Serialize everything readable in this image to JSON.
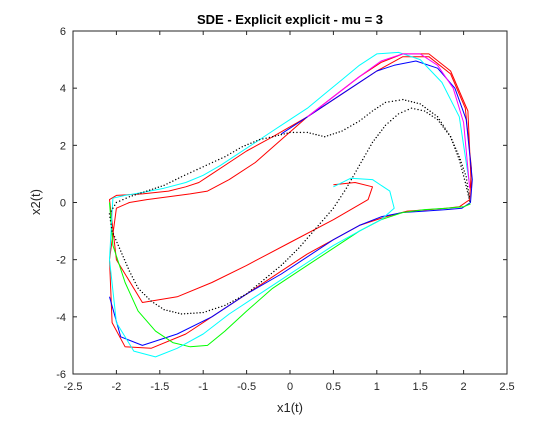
{
  "chart_data": {
    "type": "line",
    "title": "SDE - Explicit explicit - mu = 3",
    "xlabel": "x1(t)",
    "ylabel": "x2(t)",
    "xlim": [
      -2.5,
      2.5
    ],
    "ylim": [
      -6,
      6
    ],
    "xticks": [
      -2.5,
      -2,
      -1.5,
      -1,
      -0.5,
      0,
      0.5,
      1,
      1.5,
      2,
      2.5
    ],
    "yticks": [
      -6,
      -4,
      -2,
      0,
      2,
      4,
      6
    ],
    "xtick_labels": [
      "-2.5",
      "-2",
      "-1.5",
      "-1",
      "-0.5",
      "0",
      "0.5",
      "1",
      "1.5",
      "2",
      "2.5"
    ],
    "ytick_labels": [
      "-6",
      "-4",
      "-2",
      "0",
      "2",
      "4",
      "6"
    ],
    "grid": false,
    "legend": null,
    "colors": {
      "background": "#ffffff",
      "axes": "#262626"
    },
    "series": [
      {
        "color": "#ff0000",
        "line_style": "solid",
        "x": [
          0.5,
          0.75,
          0.95,
          0.9,
          0.5,
          0,
          -0.5,
          -0.9,
          -1.3,
          -1.7,
          -2.0,
          -2.08,
          -2.0,
          -1.7,
          -1.4,
          -1.2,
          -1.05,
          -0.9,
          -0.7,
          -0.5,
          -0.2,
          0.2,
          0.6,
          1.0,
          1.3,
          1.6,
          1.85,
          2.02,
          2.09,
          2.07,
          1.95,
          1.8,
          1.6,
          1.35,
          1.1,
          0.8,
          0.5,
          0.2,
          -0.1,
          -0.4,
          -0.8,
          -1.2,
          -1.6,
          -1.9,
          -2.05,
          -2.08,
          -2.0,
          -1.85,
          -1.65,
          -1.4,
          -1.15,
          -0.95,
          -0.7,
          -0.4,
          -0.1,
          0.2,
          0.5,
          0.8,
          1.05,
          1.3,
          1.6,
          1.85,
          2.05,
          2.09
        ],
        "y": [
          0.62,
          0.7,
          0.55,
          0.1,
          -0.6,
          -1.4,
          -2.2,
          -2.8,
          -3.3,
          -3.5,
          -2.0,
          0.1,
          0.25,
          0.3,
          0.4,
          0.55,
          0.7,
          1.0,
          1.4,
          1.8,
          2.3,
          3.0,
          3.8,
          4.6,
          5.1,
          5.1,
          4.5,
          3.3,
          1.2,
          0.1,
          -0.15,
          -0.2,
          -0.25,
          -0.3,
          -0.5,
          -0.8,
          -1.3,
          -1.8,
          -2.4,
          -3.0,
          -3.8,
          -4.6,
          -5.1,
          -5.05,
          -4.2,
          -2.0,
          -0.2,
          0.0,
          0.1,
          0.2,
          0.3,
          0.4,
          0.8,
          1.4,
          2.2,
          3.0,
          3.7,
          4.4,
          4.9,
          5.2,
          5.2,
          4.6,
          3.2,
          0.5
        ]
      },
      {
        "color": "#0000ff",
        "line_style": "solid",
        "x": [
          -0.1,
          0.2,
          0.5,
          0.8,
          1.0,
          1.2,
          1.45,
          1.7,
          1.9,
          2.03,
          2.1,
          2.08,
          1.98,
          1.8,
          1.55,
          1.3,
          1.05,
          0.8,
          0.5,
          0.2,
          -0.1,
          -0.5,
          -0.9,
          -1.3,
          -1.7,
          -1.95,
          -2.08
        ],
        "y": [
          2.4,
          3.0,
          3.6,
          4.2,
          4.6,
          4.8,
          4.95,
          4.7,
          4.0,
          2.9,
          0.8,
          0.0,
          -0.2,
          -0.25,
          -0.3,
          -0.35,
          -0.5,
          -0.8,
          -1.3,
          -1.9,
          -2.5,
          -3.2,
          -4.0,
          -4.6,
          -5.0,
          -4.7,
          -3.3
        ]
      },
      {
        "color": "#00ff00",
        "line_style": "solid",
        "x": [
          -2.08,
          -2.04,
          -1.9,
          -1.75,
          -1.55,
          -1.35,
          -1.15,
          -0.95,
          -0.75,
          -0.5,
          -0.2,
          0.15,
          0.5,
          0.8,
          1.05,
          1.3,
          1.55,
          1.8,
          2.0,
          2.08
        ],
        "y": [
          0.0,
          -1.5,
          -2.8,
          -3.8,
          -4.5,
          -4.9,
          -5.05,
          -5.0,
          -4.5,
          -3.8,
          -3.0,
          -2.3,
          -1.6,
          -1.0,
          -0.6,
          -0.35,
          -0.25,
          -0.2,
          -0.15,
          -0.05
        ]
      },
      {
        "color": "#00ffff",
        "line_style": "solid",
        "x": [
          0.5,
          0.7,
          0.95,
          1.15,
          1.2,
          1.05,
          0.8,
          0.5,
          0.2,
          -0.1,
          -0.4,
          -0.7,
          -1.0,
          -1.3,
          -1.55,
          -1.8,
          -2.0,
          -2.08,
          -2.04,
          -1.9,
          -1.7,
          -1.45,
          -1.2,
          -1.0,
          -0.8,
          -0.6,
          -0.4,
          -0.2,
          0.0,
          0.2,
          0.4,
          0.6,
          0.8,
          1.0,
          1.25,
          1.5,
          1.75,
          1.95,
          2.06
        ],
        "y": [
          0.55,
          0.85,
          0.8,
          0.4,
          -0.2,
          -0.6,
          -1.0,
          -1.5,
          -2.1,
          -2.7,
          -3.3,
          -3.9,
          -4.6,
          -5.1,
          -5.4,
          -5.2,
          -4.2,
          -2.0,
          0.15,
          0.25,
          0.35,
          0.5,
          0.7,
          0.95,
          1.3,
          1.7,
          2.1,
          2.5,
          2.9,
          3.3,
          3.8,
          4.3,
          4.8,
          5.2,
          5.25,
          5.0,
          4.2,
          3.0,
          0.8
        ]
      },
      {
        "color": "#ff00ff",
        "line_style": "solid",
        "x": [
          0.2,
          0.5,
          0.8,
          1.05,
          1.3,
          1.5,
          1.7,
          1.88,
          2.0,
          2.07
        ],
        "y": [
          3.0,
          3.7,
          4.4,
          4.95,
          5.2,
          5.2,
          4.8,
          4.0,
          2.8,
          0.5
        ]
      },
      {
        "color": "#000000",
        "line_style": "dotted",
        "x": [
          2.07,
          2.02,
          1.95,
          1.85,
          1.7,
          1.5,
          1.3,
          1.1,
          0.95,
          0.8,
          0.6,
          0.4,
          0.2,
          0.0,
          -0.2,
          -0.35,
          -0.55,
          -0.75,
          -1.0,
          -1.25,
          -1.45,
          -1.65,
          -1.85,
          -2.0,
          -2.08,
          -2.05,
          -1.95,
          -1.85,
          -1.75,
          -1.6,
          -1.45,
          -1.25,
          -1.0,
          -0.75,
          -0.5,
          -0.3,
          -0.1,
          0.1,
          0.3,
          0.5,
          0.65,
          0.8,
          0.95,
          1.1,
          1.25,
          1.4,
          1.55,
          1.7,
          1.85,
          1.95,
          2.03,
          2.07
        ],
        "y": [
          0.05,
          0.7,
          1.5,
          2.3,
          3.0,
          3.45,
          3.6,
          3.5,
          3.2,
          2.85,
          2.5,
          2.3,
          2.45,
          2.45,
          2.3,
          2.2,
          1.95,
          1.6,
          1.25,
          0.9,
          0.6,
          0.4,
          0.2,
          0.0,
          -0.4,
          -1.0,
          -1.7,
          -2.4,
          -3.0,
          -3.45,
          -3.75,
          -3.9,
          -3.85,
          -3.6,
          -3.2,
          -2.7,
          -2.2,
          -1.6,
          -0.9,
          -0.2,
          0.5,
          1.3,
          2.1,
          2.7,
          3.1,
          3.3,
          3.2,
          2.9,
          2.3,
          1.6,
          0.9,
          0.1
        ]
      }
    ]
  }
}
